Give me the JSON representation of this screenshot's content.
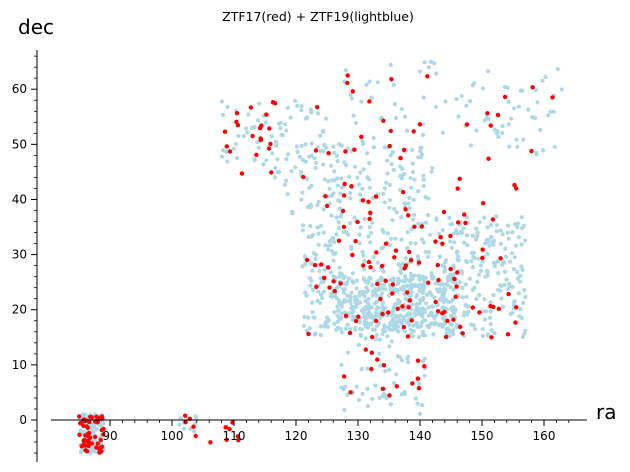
{
  "chart_data": {
    "type": "scatter",
    "title": "ZTF17(red) + ZTF19(lightblue)",
    "xlabel": "ra",
    "ylabel": "dec",
    "xlim": [
      84,
      165
    ],
    "ylim": [
      -7,
      67
    ],
    "xticks": [
      90,
      100,
      110,
      120,
      130,
      140,
      150,
      160
    ],
    "yticks": [
      0,
      10,
      20,
      30,
      40,
      50,
      60
    ],
    "grid": false,
    "legend": "none",
    "series": [
      {
        "color": "#add8e6",
        "generator": "lcg-seeded",
        "seed": 20190,
        "regions": [
          {
            "count": 120,
            "ra": [
              85,
              89
            ],
            "dec": [
              -6,
              1
            ]
          },
          {
            "count": 10,
            "ra": [
              101,
              104
            ],
            "dec": [
              -4,
              1
            ]
          },
          {
            "count": 500,
            "ra": [
              121,
              157
            ],
            "dec": [
              15,
              37
            ]
          },
          {
            "count": 350,
            "ra": [
              126,
              146
            ],
            "dec": [
              16,
              26
            ]
          },
          {
            "count": 140,
            "ra": [
              118,
              142
            ],
            "dec": [
              37,
              50
            ]
          },
          {
            "count": 70,
            "ra": [
              108,
              125
            ],
            "dec": [
              44,
              58
            ]
          },
          {
            "count": 90,
            "ra": [
              127,
              163
            ],
            "dec": [
              48,
              65
            ]
          },
          {
            "count": 60,
            "ra": [
              127,
              141
            ],
            "dec": [
              1,
              16
            ]
          }
        ]
      },
      {
        "color": "#ff0000",
        "generator": "lcg-seeded",
        "seed": 20170,
        "regions": [
          {
            "count": 50,
            "ra": [
              85,
              89
            ],
            "dec": [
              -6,
              1
            ]
          },
          {
            "count": 5,
            "ra": [
              102,
              104
            ],
            "dec": [
              -3,
              1
            ]
          },
          {
            "count": 8,
            "ra": [
              105,
              111
            ],
            "dec": [
              -5,
              1
            ]
          },
          {
            "count": 90,
            "ra": [
              121,
              156
            ],
            "dec": [
              15,
              37
            ]
          },
          {
            "count": 20,
            "ra": [
              118,
              156
            ],
            "dec": [
              37,
              45
            ]
          },
          {
            "count": 25,
            "ra": [
              108,
              126
            ],
            "dec": [
              44,
              58
            ]
          },
          {
            "count": 25,
            "ra": [
              126,
              164
            ],
            "dec": [
              47,
              64
            ]
          },
          {
            "count": 15,
            "ra": [
              127,
              141
            ],
            "dec": [
              2,
              15
            ]
          }
        ]
      }
    ]
  }
}
